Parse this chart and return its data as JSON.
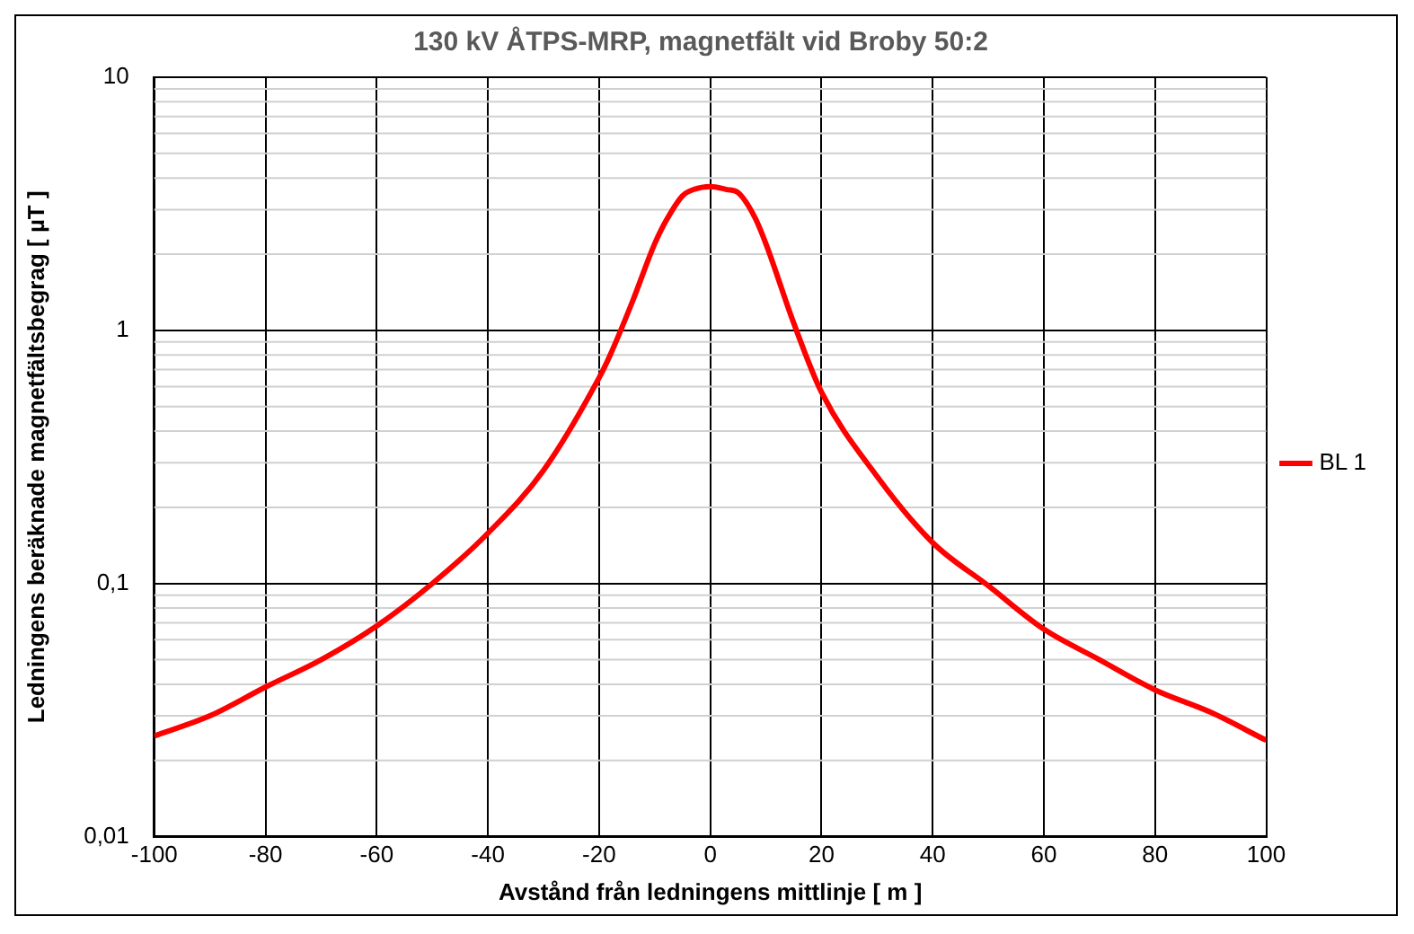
{
  "chart_data": {
    "type": "line",
    "title": "130 kV ÅTPS-MRP, magnetfält vid Broby 50:2",
    "xlabel": "Avstånd från ledningens mittlinje [ m ]",
    "ylabel": "Ledningens beräknade magnetfältsbegrag [ µT ]",
    "x": [
      -100,
      -90,
      -80,
      -70,
      -60,
      -50,
      -40,
      -30,
      -20,
      -18,
      -14,
      -10,
      -8,
      -5,
      -3,
      0,
      3,
      5,
      8,
      10,
      15,
      20,
      30,
      40,
      50,
      60,
      70,
      80,
      90,
      100
    ],
    "series": [
      {
        "name": "BL 1",
        "color": "#ff0000",
        "values": [
          0.025,
          0.03,
          0.039,
          0.05,
          0.068,
          0.1,
          0.158,
          0.28,
          0.65,
          0.8,
          1.3,
          2.2,
          2.7,
          3.4,
          3.6,
          3.7,
          3.6,
          3.5,
          2.8,
          2.2,
          1.07,
          0.57,
          0.265,
          0.145,
          0.098,
          0.066,
          0.05,
          0.038,
          0.031,
          0.024
        ]
      }
    ],
    "xlim": [
      -100,
      100
    ],
    "xticks": [
      -100,
      -80,
      -60,
      -40,
      -20,
      0,
      20,
      40,
      60,
      80,
      100
    ],
    "ylim": [
      0.01,
      10
    ],
    "yticks": [
      {
        "value": 0.01,
        "label": "0,01"
      },
      {
        "value": 0.1,
        "label": "0,1"
      },
      1,
      10
    ],
    "log": "y",
    "grid": true,
    "legend": "right",
    "marker": "none",
    "line_style": "solid"
  }
}
